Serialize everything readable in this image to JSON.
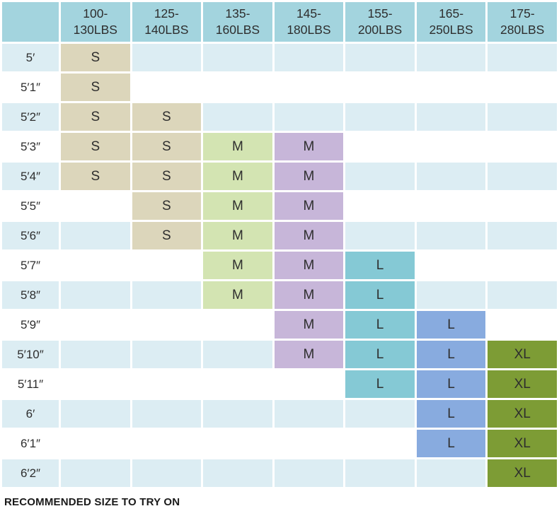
{
  "chart_data": {
    "type": "table",
    "weight_headers": [
      "100-\n130LBS",
      "125-\n140LBS",
      "135-\n160LBS",
      "145-\n180LBS",
      "155-\n200LBS",
      "165-\n250LBS",
      "175-\n280LBS"
    ],
    "heights": [
      "5′",
      "5′1″",
      "5′2″",
      "5′3″",
      "5′4″",
      "5′5″",
      "5′6″",
      "5′7″",
      "5′8″",
      "5′9″",
      "5′10″",
      "5′11″",
      "6′",
      "6′1″",
      "6′2″"
    ],
    "matrix": [
      [
        "S",
        "",
        "",
        "",
        "",
        "",
        ""
      ],
      [
        "S",
        "",
        "",
        "",
        "",
        "",
        ""
      ],
      [
        "S",
        "S",
        "",
        "",
        "",
        "",
        ""
      ],
      [
        "S",
        "S",
        "M",
        "M",
        "",
        "",
        ""
      ],
      [
        "S",
        "S",
        "M",
        "M",
        "",
        "",
        ""
      ],
      [
        "",
        "S",
        "M",
        "M",
        "",
        "",
        ""
      ],
      [
        "",
        "S",
        "M",
        "M",
        "",
        "",
        ""
      ],
      [
        "",
        "",
        "M",
        "M",
        "L",
        "",
        ""
      ],
      [
        "",
        "",
        "M",
        "M",
        "L",
        "",
        ""
      ],
      [
        "",
        "",
        "",
        "M",
        "L",
        "L",
        ""
      ],
      [
        "",
        "",
        "",
        "M",
        "L",
        "L",
        "XL"
      ],
      [
        "",
        "",
        "",
        "",
        "L",
        "L",
        "XL"
      ],
      [
        "",
        "",
        "",
        "",
        "",
        "L",
        "XL"
      ],
      [
        "",
        "",
        "",
        "",
        "",
        "L",
        "XL"
      ],
      [
        "",
        "",
        "",
        "",
        "",
        "",
        "XL"
      ]
    ],
    "footer": "RECOMMENDED SIZE TO TRY ON"
  },
  "colors": {
    "header_bg": "#a3d4de",
    "stripe_bg": "#dcedf3",
    "text": "#2e2e2e",
    "column_cell_colors": [
      "#dcd6bb",
      "#dcd6bb",
      "#d3e4b2",
      "#c7b6d9",
      "#85c9d5",
      "#88abdf",
      "#7d9c35"
    ]
  }
}
